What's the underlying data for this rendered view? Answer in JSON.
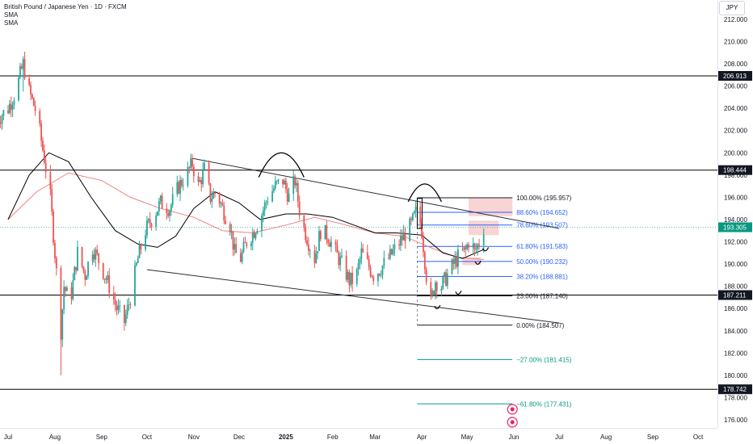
{
  "header": {
    "title": "British Pound / Japanese Yen · 1D · FXCM",
    "indicator1": "SMA",
    "indicator2": "SMA"
  },
  "currency_button": "JPY",
  "colors": {
    "up": "#26a69a",
    "down": "#ef5350",
    "sma_fast": "#000000",
    "sma_slow": "#f08080",
    "fib_blue": "#2962ff",
    "fib_green": "#089981",
    "zone_fill": "#f5c6c6",
    "axis_text": "#131722"
  },
  "chart_data": {
    "type": "candlestick",
    "ylim": [
      174.5,
      213.0
    ],
    "y_ticks": [
      176,
      178,
      180,
      182,
      184,
      186,
      188,
      190,
      192,
      194,
      196,
      198,
      200,
      202,
      204,
      206,
      208,
      210,
      212
    ],
    "x_ticks": [
      {
        "label": "Jul",
        "date": "2024-07-01",
        "bold": false
      },
      {
        "label": "Aug",
        "date": "2024-08-01",
        "bold": false
      },
      {
        "label": "Sep",
        "date": "2024-09-01",
        "bold": false
      },
      {
        "label": "Oct",
        "date": "2024-10-01",
        "bold": false
      },
      {
        "label": "Nov",
        "date": "2024-11-01",
        "bold": false
      },
      {
        "label": "Dec",
        "date": "2024-12-01",
        "bold": false
      },
      {
        "label": "2025",
        "date": "2025-01-01",
        "bold": true
      },
      {
        "label": "Feb",
        "date": "2025-02-01",
        "bold": false
      },
      {
        "label": "Mar",
        "date": "2025-03-01",
        "bold": false
      },
      {
        "label": "Apr",
        "date": "2025-04-01",
        "bold": false
      },
      {
        "label": "May",
        "date": "2025-05-01",
        "bold": false
      },
      {
        "label": "Jun",
        "date": "2025-06-01",
        "bold": false
      },
      {
        "label": "Jul",
        "date": "2025-07-01",
        "bold": false
      },
      {
        "label": "Aug",
        "date": "2025-08-01",
        "bold": false
      },
      {
        "label": "Sep",
        "date": "2025-09-01",
        "bold": false
      },
      {
        "label": "Oct",
        "date": "2025-10-01",
        "bold": false
      }
    ],
    "price_path": [
      [
        "2024-06-24",
        203.0
      ],
      [
        "2024-07-01",
        204.0
      ],
      [
        "2024-07-06",
        205.5
      ],
      [
        "2024-07-11",
        208.0
      ],
      [
        "2024-07-15",
        205.5
      ],
      [
        "2024-07-20",
        203.5
      ],
      [
        "2024-07-25",
        199.5
      ],
      [
        "2024-07-29",
        196.0
      ],
      [
        "2024-08-01",
        191.0
      ],
      [
        "2024-08-05",
        184.0
      ],
      [
        "2024-08-07",
        188.0
      ],
      [
        "2024-08-11",
        186.5
      ],
      [
        "2024-08-16",
        191.0
      ],
      [
        "2024-08-21",
        189.0
      ],
      [
        "2024-08-26",
        191.5
      ],
      [
        "2024-08-31",
        190.0
      ],
      [
        "2024-09-06",
        188.0
      ],
      [
        "2024-09-11",
        186.0
      ],
      [
        "2024-09-16",
        184.8
      ],
      [
        "2024-09-20",
        187.0
      ],
      [
        "2024-09-25",
        190.5
      ],
      [
        "2024-09-30",
        193.0
      ],
      [
        "2024-10-04",
        194.0
      ],
      [
        "2024-10-10",
        195.5
      ],
      [
        "2024-10-16",
        195.0
      ],
      [
        "2024-10-22",
        197.0
      ],
      [
        "2024-10-27",
        198.0
      ],
      [
        "2024-10-31",
        199.0
      ],
      [
        "2024-11-04",
        197.0
      ],
      [
        "2024-11-08",
        198.5
      ],
      [
        "2024-11-12",
        196.0
      ],
      [
        "2024-11-16",
        196.5
      ],
      [
        "2024-11-20",
        195.0
      ],
      [
        "2024-11-25",
        193.5
      ],
      [
        "2024-11-28",
        191.0
      ],
      [
        "2024-12-02",
        190.5
      ],
      [
        "2024-12-06",
        192.0
      ],
      [
        "2024-12-11",
        193.0
      ],
      [
        "2024-12-16",
        194.5
      ],
      [
        "2024-12-20",
        196.0
      ],
      [
        "2024-12-25",
        197.0
      ],
      [
        "2024-12-30",
        197.5
      ],
      [
        "2025-01-03",
        196.0
      ],
      [
        "2025-01-07",
        197.5
      ],
      [
        "2025-01-11",
        194.0
      ],
      [
        "2025-01-16",
        192.0
      ],
      [
        "2025-01-20",
        190.5
      ],
      [
        "2025-01-24",
        193.0
      ],
      [
        "2025-01-29",
        192.5
      ],
      [
        "2025-02-03",
        191.0
      ],
      [
        "2025-02-07",
        190.0
      ],
      [
        "2025-02-12",
        188.5
      ],
      [
        "2025-02-16",
        188.5
      ],
      [
        "2025-02-20",
        191.0
      ],
      [
        "2025-02-24",
        190.0
      ],
      [
        "2025-02-28",
        189.0
      ],
      [
        "2025-03-04",
        189.5
      ],
      [
        "2025-03-10",
        190.5
      ],
      [
        "2025-03-15",
        191.5
      ],
      [
        "2025-03-20",
        192.5
      ],
      [
        "2025-03-25",
        193.5
      ],
      [
        "2025-03-29",
        195.0
      ],
      [
        "2025-04-01",
        193.0
      ],
      [
        "2025-04-04",
        189.0
      ],
      [
        "2025-04-07",
        186.5
      ],
      [
        "2025-04-10",
        188.5
      ],
      [
        "2025-04-14",
        188.0
      ],
      [
        "2025-04-18",
        189.0
      ],
      [
        "2025-04-22",
        190.0
      ],
      [
        "2025-04-26",
        190.8
      ],
      [
        "2025-04-30",
        191.2
      ],
      [
        "2025-05-03",
        192.5
      ],
      [
        "2025-05-06",
        191.0
      ],
      [
        "2025-05-09",
        192.0
      ],
      [
        "2025-05-12",
        193.3
      ]
    ],
    "sma_fast": [
      [
        "2024-07-01",
        194.0
      ],
      [
        "2024-07-15",
        198.0
      ],
      [
        "2024-07-28",
        200.0
      ],
      [
        "2024-08-10",
        199.2
      ],
      [
        "2024-08-25",
        196.0
      ],
      [
        "2024-09-10",
        193.0
      ],
      [
        "2024-09-25",
        191.8
      ],
      [
        "2024-10-08",
        191.5
      ],
      [
        "2024-10-20",
        192.5
      ],
      [
        "2024-11-01",
        195.0
      ],
      [
        "2024-11-15",
        196.5
      ],
      [
        "2024-12-01",
        195.5
      ],
      [
        "2024-12-15",
        194.0
      ],
      [
        "2025-01-01",
        194.5
      ],
      [
        "2025-01-15",
        194.5
      ],
      [
        "2025-02-01",
        194.2
      ],
      [
        "2025-02-15",
        193.5
      ],
      [
        "2025-03-01",
        192.8
      ],
      [
        "2025-03-15",
        192.8
      ],
      [
        "2025-04-01",
        192.6
      ],
      [
        "2025-04-15",
        191.0
      ],
      [
        "2025-04-28",
        190.5
      ],
      [
        "2025-05-12",
        191.3
      ]
    ],
    "sma_slow": [
      [
        "2024-07-01",
        194.0
      ],
      [
        "2024-07-20",
        196.5
      ],
      [
        "2024-08-10",
        198.2
      ],
      [
        "2024-09-01",
        197.5
      ],
      [
        "2024-09-20",
        196.0
      ],
      [
        "2024-10-10",
        195.0
      ],
      [
        "2024-11-01",
        194.2
      ],
      [
        "2024-11-20",
        193.0
      ],
      [
        "2024-12-10",
        192.8
      ],
      [
        "2025-01-01",
        193.5
      ],
      [
        "2025-01-20",
        194.2
      ],
      [
        "2025-02-10",
        193.5
      ],
      [
        "2025-03-01",
        192.8
      ],
      [
        "2025-03-20",
        192.5
      ],
      [
        "2025-04-10",
        191.3
      ],
      [
        "2025-04-25",
        190.6
      ],
      [
        "2025-05-12",
        190.4
      ]
    ],
    "horizontal_levels": [
      {
        "value": 206.913,
        "label": "206.913"
      },
      {
        "value": 198.444,
        "label": "198.444"
      },
      {
        "value": 187.211,
        "label": "187.211"
      },
      {
        "value": 178.742,
        "label": "178.742"
      }
    ],
    "current_price": {
      "value": 193.305,
      "label": "193.305"
    },
    "channel_lines": [
      {
        "from": [
          "2024-10-31",
          199.5
        ],
        "to": [
          "2025-07-01",
          193.2
        ]
      },
      {
        "from": [
          "2024-10-01",
          189.5
        ],
        "to": [
          "2025-07-01",
          184.7
        ]
      }
    ],
    "fib_levels": [
      {
        "value": 195.957,
        "label": "100.00% (195.957)",
        "color": "#131722"
      },
      {
        "value": 194.652,
        "label": "88.60% (194.652)",
        "color": "#2962ff"
      },
      {
        "value": 193.507,
        "label": "78.60% (193.507)",
        "color": "#2962ff"
      },
      {
        "value": 191.583,
        "label": "61.80% (191.583)",
        "color": "#2962ff"
      },
      {
        "value": 190.232,
        "label": "50.00% (190.232)",
        "color": "#2962ff"
      },
      {
        "value": 188.881,
        "label": "38.20% (188.881)",
        "color": "#2962ff"
      },
      {
        "value": 187.14,
        "label": "23.00% (187.140)",
        "color": "#131722"
      },
      {
        "value": 184.507,
        "label": "0.00% (184.507)",
        "color": "#131722"
      },
      {
        "value": 181.415,
        "label": "−27.00% (181.415)",
        "color": "#089981"
      },
      {
        "value": 177.431,
        "label": "−61.80% (177.431)",
        "color": "#089981"
      }
    ],
    "fib_range": {
      "from": "2025-03-29",
      "to": "2025-05-31"
    },
    "zones": [
      {
        "x_from": "2025-05-02",
        "x_to": "2025-05-31",
        "y_from": 194.3,
        "y_to": 195.9
      },
      {
        "x_from": "2025-05-02",
        "x_to": "2025-05-22",
        "y_from": 192.6,
        "y_to": 193.9
      },
      {
        "x_from": "2025-04-28",
        "x_to": "2025-05-10",
        "y_from": 189.9,
        "y_to": 190.6
      }
    ],
    "arcs": [
      {
        "from": [
          "2024-12-14",
          197.8
        ],
        "to": [
          "2025-01-13",
          197.8
        ],
        "peak": 200.0
      },
      {
        "from": [
          "2025-03-23",
          195.6
        ],
        "to": [
          "2025-04-14",
          195.6
        ],
        "peak": 197.2
      }
    ]
  }
}
